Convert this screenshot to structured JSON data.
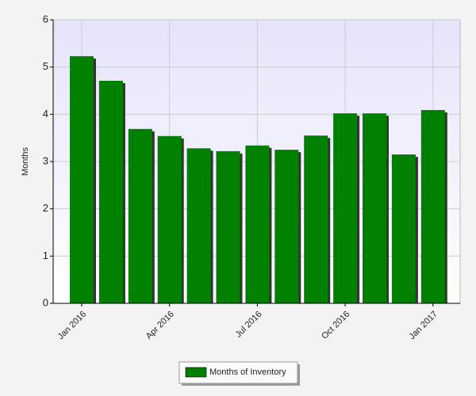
{
  "chart_data": {
    "type": "bar",
    "y_label": "Months",
    "categories": [
      "Jan 2016",
      null,
      null,
      "Apr 2016",
      null,
      null,
      "Jul 2016",
      null,
      null,
      "Oct 2016",
      null,
      null,
      "Jan 2017"
    ],
    "series": [
      {
        "name": "Months of Inventory",
        "color": "#007f00",
        "values": [
          5.23,
          4.71,
          3.69,
          3.54,
          3.28,
          3.22,
          3.34,
          3.25,
          3.55,
          4.02,
          4.02,
          3.15,
          4.09
        ]
      }
    ],
    "ylim": [
      0,
      6
    ],
    "yticks": [
      0,
      1,
      2,
      3,
      4,
      5,
      6
    ],
    "grid": true
  }
}
